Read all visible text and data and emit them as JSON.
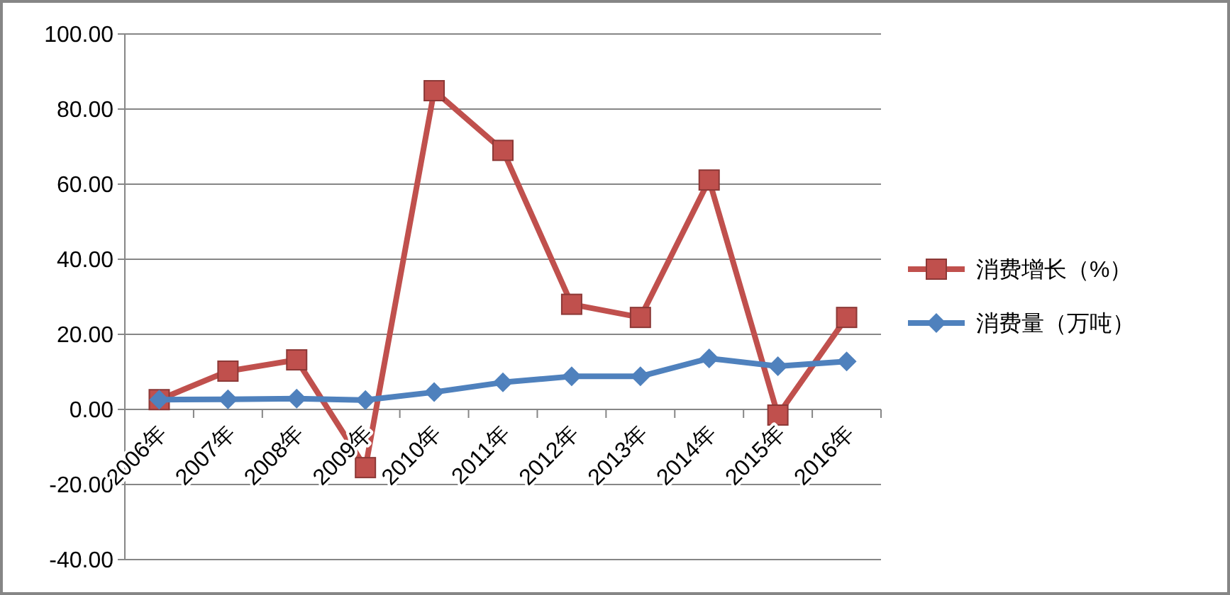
{
  "chart_data": {
    "type": "line",
    "categories": [
      "2006年",
      "2007年",
      "2008年",
      "2009年",
      "2010年",
      "2011年",
      "2012年",
      "2013年",
      "2014年",
      "2015年",
      "2016年"
    ],
    "series": [
      {
        "name": "消费增长（%）",
        "color": "#c0504d",
        "marker": "square",
        "values": [
          2.6,
          10.2,
          13.2,
          -15.5,
          84.9,
          69.0,
          28.0,
          24.5,
          61.1,
          -1.5,
          24.5
        ]
      },
      {
        "name": "消费量（万吨）",
        "color": "#4f81bd",
        "marker": "diamond",
        "values": [
          2.6,
          2.7,
          2.9,
          2.5,
          4.6,
          7.2,
          8.8,
          8.8,
          13.6,
          11.5,
          12.8
        ]
      }
    ],
    "ylim": [
      -40,
      100
    ],
    "yticks": [
      {
        "value": -40,
        "label": "-40.00"
      },
      {
        "value": -20,
        "label": "-20.00"
      },
      {
        "value": 0,
        "label": "0.00"
      },
      {
        "value": 20,
        "label": "20.00"
      },
      {
        "value": 40,
        "label": "40.00"
      },
      {
        "value": 60,
        "label": "60.00"
      },
      {
        "value": 80,
        "label": "80.00"
      },
      {
        "value": 100,
        "label": "100.00"
      }
    ],
    "grid": "y",
    "legend": "right"
  }
}
